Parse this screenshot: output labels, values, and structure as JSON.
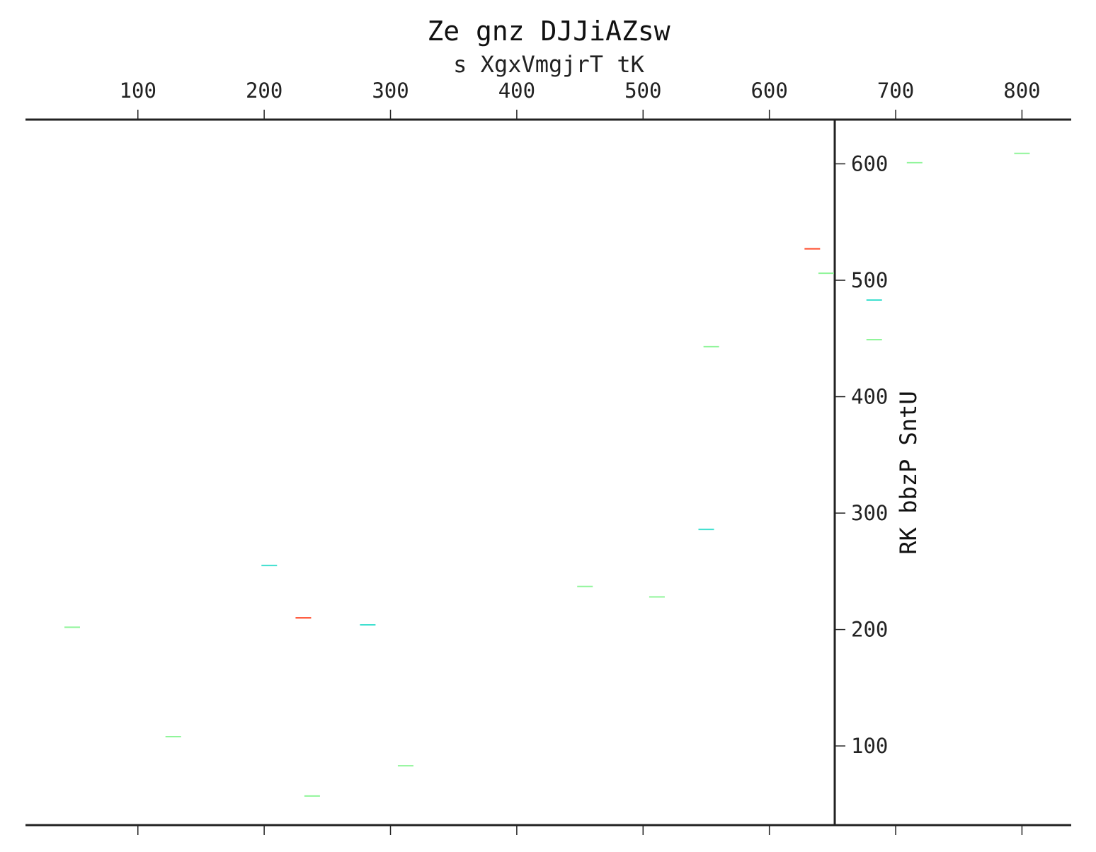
{
  "chart_data": {
    "type": "scatter",
    "title": "Ze gnz DJJiAZsw",
    "xlabel": "s XgxVmgjrT tK",
    "ylabel": "RK bbzP SntU",
    "x_ticks": [
      100,
      200,
      300,
      400,
      500,
      600,
      700,
      800
    ],
    "y_ticks": [
      100,
      200,
      300,
      400,
      500,
      600
    ],
    "xlim": [
      11,
      839
    ],
    "ylim": [
      32,
      638
    ],
    "grid": false,
    "marker": "horizontal dash",
    "colors": {
      "green": "#90f59a",
      "cyan": "#40e0d0",
      "red": "#ff4b2b"
    },
    "series": [
      {
        "color": "green",
        "points": [
          {
            "x": 48,
            "y": 202
          },
          {
            "x": 128,
            "y": 108
          },
          {
            "x": 238,
            "y": 57
          },
          {
            "x": 312,
            "y": 83
          },
          {
            "x": 454,
            "y": 237
          },
          {
            "x": 511,
            "y": 228
          },
          {
            "x": 554,
            "y": 443
          },
          {
            "x": 645,
            "y": 506
          },
          {
            "x": 683,
            "y": 449
          },
          {
            "x": 715,
            "y": 601
          },
          {
            "x": 800,
            "y": 609
          }
        ]
      },
      {
        "color": "cyan",
        "points": [
          {
            "x": 204,
            "y": 255
          },
          {
            "x": 282,
            "y": 204
          },
          {
            "x": 550,
            "y": 286
          },
          {
            "x": 683,
            "y": 483
          }
        ]
      },
      {
        "color": "red",
        "points": [
          {
            "x": 231,
            "y": 210
          },
          {
            "x": 634,
            "y": 527
          }
        ]
      }
    ]
  }
}
